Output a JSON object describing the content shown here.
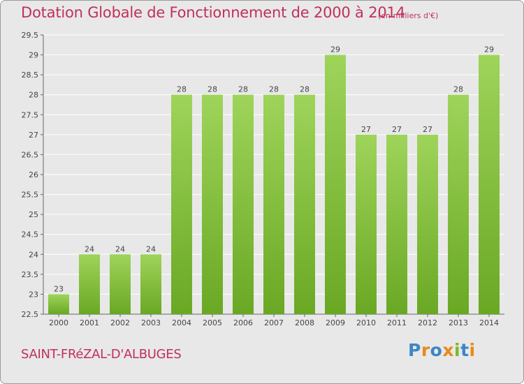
{
  "chart_data": {
    "type": "bar",
    "title": "Dotation Globale de Fonctionnement de 2000 à 2014",
    "subtitle": "(en milliers d'€)",
    "categories": [
      "2000",
      "2001",
      "2002",
      "2003",
      "2004",
      "2005",
      "2006",
      "2007",
      "2008",
      "2009",
      "2010",
      "2011",
      "2012",
      "2013",
      "2014"
    ],
    "values": [
      23,
      24,
      24,
      24,
      28,
      28,
      28,
      28,
      28,
      29,
      27,
      27,
      27,
      28,
      29
    ],
    "ylim": [
      22.5,
      29.5
    ],
    "yticks": [
      "22.5",
      "23",
      "23.5",
      "24",
      "24.5",
      "25",
      "25.5",
      "26",
      "26.5",
      "27",
      "27.5",
      "28",
      "28.5",
      "29",
      "29.5"
    ],
    "xlabel": "",
    "ylabel": "",
    "grid": true,
    "colors": {
      "bar_light": "#9ed45a",
      "bar_dark": "#6aa824",
      "title": "#c0305a"
    }
  },
  "footer": {
    "commune": "SAINT-FRéZAL-D'ALBUGES"
  },
  "logo": {
    "letters": [
      "P",
      "r",
      "o",
      "x",
      "i",
      "t",
      "i"
    ],
    "colors": [
      "#3d86c6",
      "#e8891c",
      "#3d86c6",
      "#e8891c",
      "#79b82e",
      "#3d86c6",
      "#e8891c"
    ]
  }
}
